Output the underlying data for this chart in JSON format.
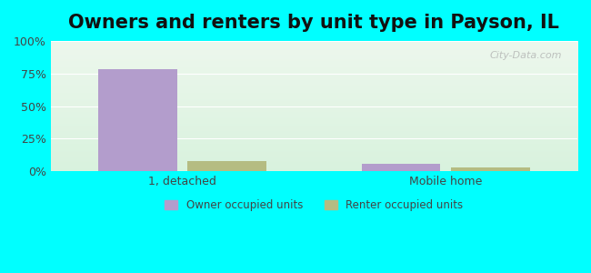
{
  "title": "Owners and renters by unit type in Payson, IL",
  "categories": [
    "1, detached",
    "Mobile home"
  ],
  "owner_values": [
    78,
    6
  ],
  "renter_values": [
    8,
    3
  ],
  "owner_color": "#b39dcc",
  "renter_color": "#b5bc82",
  "ylim": [
    0,
    100
  ],
  "yticks": [
    0,
    25,
    50,
    75,
    100
  ],
  "ytick_labels": [
    "0%",
    "25%",
    "50%",
    "75%",
    "100%"
  ],
  "background_color_top": "#d8f0e0",
  "background_color_bottom": "#e8f8e8",
  "outer_bg": "#00ffff",
  "title_fontsize": 15,
  "legend_labels": [
    "Owner occupied units",
    "Renter occupied units"
  ],
  "bar_width": 0.3,
  "watermark": "City-Data.com"
}
